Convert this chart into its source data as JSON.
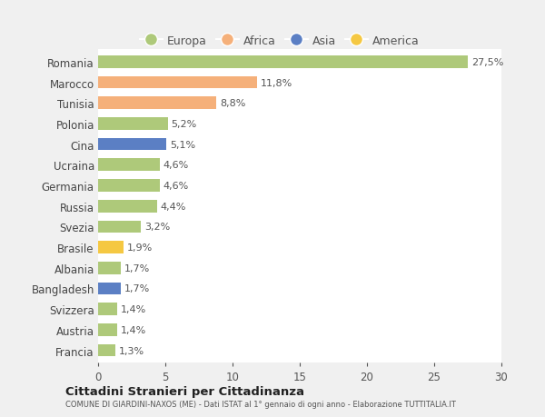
{
  "countries": [
    "Romania",
    "Marocco",
    "Tunisia",
    "Polonia",
    "Cina",
    "Ucraina",
    "Germania",
    "Russia",
    "Svezia",
    "Brasile",
    "Albania",
    "Bangladesh",
    "Svizzera",
    "Austria",
    "Francia"
  ],
  "values": [
    27.5,
    11.8,
    8.8,
    5.2,
    5.1,
    4.6,
    4.6,
    4.4,
    3.2,
    1.9,
    1.7,
    1.7,
    1.4,
    1.4,
    1.3
  ],
  "labels": [
    "27,5%",
    "11,8%",
    "8,8%",
    "5,2%",
    "5,1%",
    "4,6%",
    "4,6%",
    "4,4%",
    "3,2%",
    "1,9%",
    "1,7%",
    "1,7%",
    "1,4%",
    "1,4%",
    "1,3%"
  ],
  "colors": [
    "#aec97a",
    "#f5b07a",
    "#f5b07a",
    "#aec97a",
    "#5b7fc4",
    "#aec97a",
    "#aec97a",
    "#aec97a",
    "#aec97a",
    "#f5c842",
    "#aec97a",
    "#5b7fc4",
    "#aec97a",
    "#aec97a",
    "#aec97a"
  ],
  "legend_labels": [
    "Europa",
    "Africa",
    "Asia",
    "America"
  ],
  "legend_colors": [
    "#aec97a",
    "#f5b07a",
    "#5b7fc4",
    "#f5c842"
  ],
  "title": "Cittadini Stranieri per Cittadinanza",
  "subtitle": "COMUNE DI GIARDINI-NAXOS (ME) - Dati ISTAT al 1° gennaio di ogni anno - Elaborazione TUTTITALIA.IT",
  "xlim": [
    0,
    30
  ],
  "xticks": [
    0,
    5,
    10,
    15,
    20,
    25,
    30
  ],
  "bg_color": "#f0f0f0",
  "plot_bg_color": "#ffffff",
  "grid_color": "#ffffff",
  "label_fontsize": 8.0,
  "tick_fontsize": 8.5,
  "bar_height": 0.6
}
